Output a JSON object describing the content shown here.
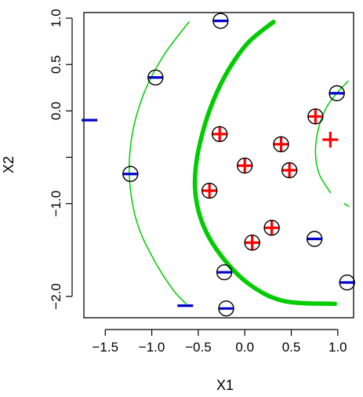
{
  "chart_data": {
    "type": "scatter",
    "title": "",
    "xlabel": "X1",
    "ylabel": "X2",
    "xlim": [
      -1.73,
      1.17
    ],
    "ylim": [
      -2.23,
      1.06
    ],
    "xticks": [
      -1.5,
      -1.0,
      -0.5,
      0.0,
      0.5,
      1.0
    ],
    "xtick_labels": [
      "−1.5",
      "−1.0",
      "−0.5",
      "0.0",
      "0.5",
      "1.0"
    ],
    "yticks": [
      -2.0,
      -1.0,
      -0.5,
      0.0,
      0.5,
      1.0
    ],
    "ytick_labels": [
      "−2.0",
      "−1.0",
      "",
      "0.0",
      "0.5",
      "1.0"
    ],
    "grid": false,
    "legend": "none",
    "colors": {
      "plus": "#ff0000",
      "minus": "#0000cc",
      "boundary": "#00cc00",
      "circle": "#000000"
    },
    "series": [
      {
        "marker": "plus",
        "points": [
          [
            -0.27,
            -0.25
          ],
          [
            0.39,
            -0.36
          ],
          [
            0.0,
            -0.59
          ],
          [
            0.48,
            -0.64
          ],
          [
            -0.38,
            -0.86
          ],
          [
            0.29,
            -1.26
          ],
          [
            0.08,
            -1.42
          ],
          [
            0.76,
            -0.06
          ],
          [
            0.92,
            -0.31
          ]
        ],
        "circled": [
          true,
          true,
          true,
          true,
          true,
          true,
          true,
          true,
          false
        ]
      },
      {
        "marker": "minus",
        "points": [
          [
            -0.26,
            0.97
          ],
          [
            -0.96,
            0.36
          ],
          [
            -1.67,
            -0.1
          ],
          [
            -1.23,
            -0.68
          ],
          [
            0.99,
            0.19
          ],
          [
            0.75,
            -1.38
          ],
          [
            -0.22,
            -1.74
          ],
          [
            1.1,
            -1.85
          ],
          [
            -0.2,
            -2.13
          ],
          [
            -0.64,
            -2.1
          ]
        ],
        "circled": [
          true,
          true,
          false,
          true,
          true,
          true,
          true,
          true,
          true,
          false
        ]
      }
    ],
    "boundaries": [
      {
        "name": "main",
        "weight": "thick",
        "points": [
          [
            0.31,
            0.96
          ],
          [
            0.05,
            0.75
          ],
          [
            -0.14,
            0.5
          ],
          [
            -0.3,
            0.2
          ],
          [
            -0.43,
            -0.15
          ],
          [
            -0.52,
            -0.55
          ],
          [
            -0.53,
            -0.9
          ],
          [
            -0.44,
            -1.25
          ],
          [
            -0.24,
            -1.58
          ],
          [
            0.05,
            -1.87
          ],
          [
            0.42,
            -2.05
          ],
          [
            0.97,
            -2.08
          ]
        ]
      },
      {
        "name": "outer",
        "weight": "thin",
        "points": [
          [
            -0.6,
            0.96
          ],
          [
            -0.87,
            0.6
          ],
          [
            -1.08,
            0.2
          ],
          [
            -1.21,
            -0.25
          ],
          [
            -1.24,
            -0.72
          ],
          [
            -1.16,
            -1.2
          ],
          [
            -0.98,
            -1.6
          ],
          [
            -0.77,
            -1.93
          ],
          [
            -0.63,
            -2.08
          ]
        ]
      },
      {
        "name": "right",
        "weight": "thin",
        "points": [
          [
            1.11,
            0.32
          ],
          [
            0.98,
            0.18
          ],
          [
            0.87,
            0.02
          ],
          [
            0.79,
            -0.2
          ],
          [
            0.76,
            -0.45
          ],
          [
            0.8,
            -0.68
          ],
          [
            0.92,
            -0.88
          ]
        ]
      },
      {
        "name": "right-tail",
        "weight": "thin",
        "points": [
          [
            1.07,
            -1.0
          ],
          [
            1.12,
            -1.03
          ]
        ]
      }
    ]
  }
}
